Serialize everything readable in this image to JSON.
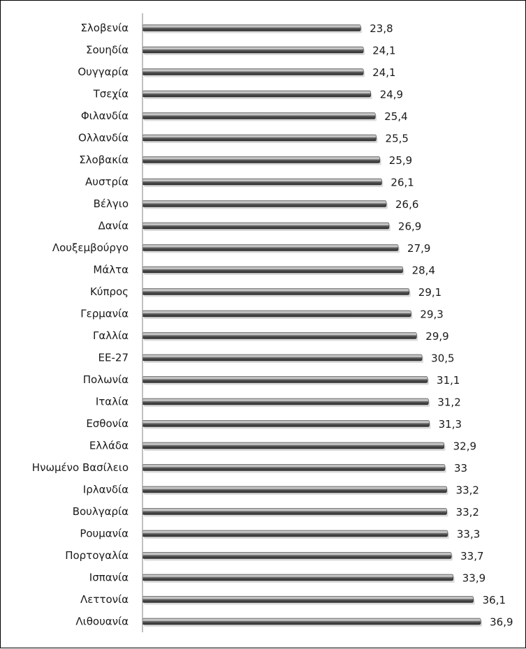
{
  "chart_data": {
    "type": "bar",
    "orientation": "horizontal",
    "title": "",
    "xlabel": "",
    "ylabel": "",
    "xlim": [
      0,
      40
    ],
    "grid": false,
    "legend": "none",
    "bar_color": "#4a4a4a",
    "categories": [
      "Σλοβενία",
      "Σουηδία",
      "Ουγγαρία",
      "Τσεχία",
      "Φιλανδία",
      "Ολλανδία",
      "Σλοβακία",
      "Αυστρία",
      "Βέλγιο",
      "Δανία",
      "Λουξεμβούργο",
      "Μάλτα",
      "Κύπρος",
      "Γερμανία",
      "Γαλλία",
      "ΕΕ-27",
      "Πολωνία",
      "Ιταλία",
      "Εσθονία",
      "Ελλάδα",
      "Ηνωμένο Βασίλειο",
      "Ιρλανδία",
      "Βουλγαρία",
      "Ρουμανία",
      "Πορτογαλία",
      "Ισπανία",
      "Λεττονία",
      "Λιθουανία"
    ],
    "values": [
      23.8,
      24.1,
      24.1,
      24.9,
      25.4,
      25.5,
      25.9,
      26.1,
      26.6,
      26.9,
      27.9,
      28.4,
      29.1,
      29.3,
      29.9,
      30.5,
      31.1,
      31.2,
      31.3,
      32.9,
      33,
      33.2,
      33.2,
      33.3,
      33.7,
      33.9,
      36.1,
      36.9
    ],
    "value_labels": [
      "23,8",
      "24,1",
      "24,1",
      "24,9",
      "25,4",
      "25,5",
      "25,9",
      "26,1",
      "26,6",
      "26,9",
      "27,9",
      "28,4",
      "29,1",
      "29,3",
      "29,9",
      "30,5",
      "31,1",
      "31,2",
      "31,3",
      "32,9",
      "33",
      "33,2",
      "33,2",
      "33,3",
      "33,7",
      "33,9",
      "36,1",
      "36,9"
    ]
  }
}
